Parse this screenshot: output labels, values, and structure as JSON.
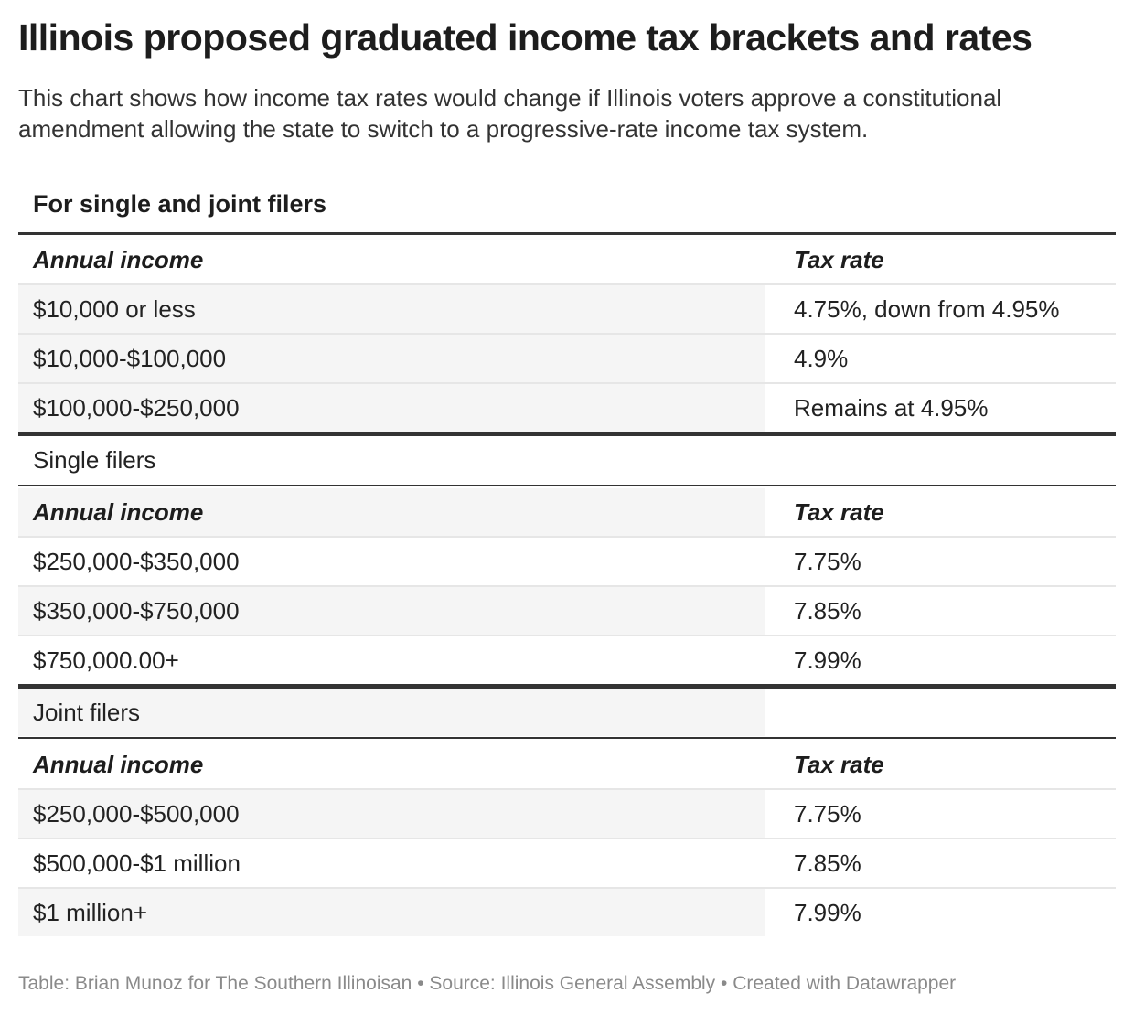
{
  "chart_data": {
    "type": "table",
    "title": "Illinois proposed graduated income tax brackets and rates",
    "subtitle": "This chart shows how income tax rates would change if Illinois voters approve a constitutional amendment allowing the state to switch to a progressive-rate income tax system.",
    "section_title": "For single and joint filers",
    "columns": [
      "Annual income",
      "Tax rate"
    ],
    "groups": [
      {
        "label": "",
        "rows": [
          [
            "$10,000 or less",
            "4.75%, down from 4.95%"
          ],
          [
            "$10,000-$100,000",
            "4.9%"
          ],
          [
            "$100,000-$250,000",
            "Remains at 4.95%"
          ]
        ]
      },
      {
        "label": "Single filers",
        "rows": [
          [
            "$250,000-$350,000",
            "7.75%"
          ],
          [
            "$350,000-$750,000",
            "7.85%"
          ],
          [
            "$750,000.00+",
            "7.99%"
          ]
        ]
      },
      {
        "label": "Joint filers",
        "rows": [
          [
            "$250,000-$500,000",
            "7.75%"
          ],
          [
            "$500,000-$1 million",
            "7.85%"
          ],
          [
            "$1 million+",
            "7.99%"
          ]
        ]
      }
    ],
    "footer": "Table: Brian Munoz for The Southern Illinoisan • Source: Illinois General Assembly • Created with Datawrapper"
  }
}
